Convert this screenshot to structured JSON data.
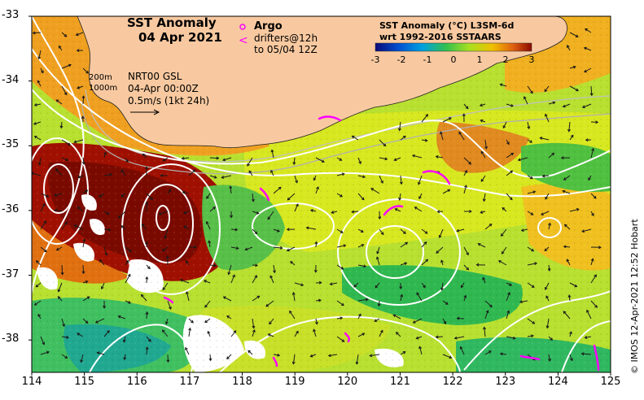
{
  "title": {
    "line1": "SST Anomaly",
    "line2": "04 Apr 2021"
  },
  "legend": {
    "argo_symbol": "o",
    "argo_label": "Argo",
    "drifter_symbol": "<",
    "drifter_line1": "drifters@12h",
    "drifter_line2": "to 05/04 12Z"
  },
  "colorbar": {
    "title_line1": "SST Anomaly (°C) L3SM-6d",
    "title_line2": "wrt 1992-2016 SSTAARS",
    "ticks": [
      "-3",
      "-2",
      "-1",
      "0",
      "1",
      "2",
      "3"
    ],
    "range": [
      -3,
      3
    ],
    "colors": [
      "#0a0a78",
      "#0050d0",
      "#00a0e0",
      "#30c050",
      "#a8e020",
      "#f0c000",
      "#e06010",
      "#8a0a00"
    ]
  },
  "info": {
    "contour_200": "200m",
    "contour_1000": "1000m",
    "source": "NRT00 GSL",
    "time": "04-Apr 00:00Z",
    "scale": "0.5m/s (1kt 24h)"
  },
  "axes": {
    "lon_ticks": [
      "114",
      "115",
      "116",
      "117",
      "118",
      "119",
      "120",
      "121",
      "122",
      "123",
      "124",
      "125"
    ],
    "lat_ticks": [
      "-33",
      "-34",
      "-35",
      "-36",
      "-37",
      "-38"
    ],
    "lon_range": [
      114,
      125
    ],
    "lat_range": [
      -38.5,
      -33
    ]
  },
  "credit": "© IMOS 12-Apr-2021 12:52 Hobart",
  "colors": {
    "land": "#f8c9a0",
    "contour": "#ffffff",
    "drifter": "#ff00ff"
  }
}
